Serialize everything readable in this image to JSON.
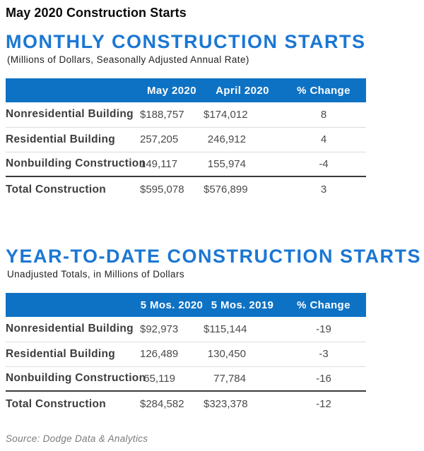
{
  "page": {
    "title": "May 2020 Construction Starts",
    "source": "Source: Dodge Data & Analytics"
  },
  "colors": {
    "header_bar_blue": "#0E72C4",
    "title_blue": "#1B77D3",
    "dark_rule": "#3A3A3A",
    "light_rule": "#DCDCDC",
    "body_text": "#4A4A4A"
  },
  "tables": [
    {
      "title": "MONTHLY CONSTRUCTION STARTS",
      "subtitle": "(Millions of Dollars, Seasonally Adjusted Annual Rate)",
      "columns": {
        "c1": "May 2020",
        "c2": "April 2020",
        "c3": "% Change"
      },
      "rows": [
        {
          "label": "Nonresidential Building",
          "v1": "$188,757",
          "v2": "$174,012",
          "v3": "8"
        },
        {
          "label": "Residential Building",
          "v1": "257,205",
          "v2": "246,912",
          "v3": "4"
        },
        {
          "label": "Nonbuilding Construction",
          "v1": "149,117",
          "v2": "155,974",
          "v3": "-4"
        }
      ],
      "total": {
        "label": "Total Construction",
        "v1": "$595,078",
        "v2": "$576,899",
        "v3": "3"
      }
    },
    {
      "title": "YEAR-TO-DATE CONSTRUCTION STARTS",
      "subtitle": "Unadjusted Totals, in Millions of Dollars",
      "columns": {
        "c1": "5 Mos. 2020",
        "c2": "5 Mos. 2019",
        "c3": "% Change"
      },
      "rows": [
        {
          "label": "Nonresidential Building",
          "v1": "$92,973",
          "v2": "$115,144",
          "v3": "-19"
        },
        {
          "label": "Residential Building",
          "v1": "126,489",
          "v2": "130,450",
          "v3": "-3"
        },
        {
          "label": "Nonbuilding Construction",
          "v1": "65,119",
          "v2": "77,784",
          "v3": "-16"
        }
      ],
      "total": {
        "label": "Total Construction",
        "v1": "$284,582",
        "v2": "$323,378",
        "v3": "-12"
      }
    }
  ]
}
